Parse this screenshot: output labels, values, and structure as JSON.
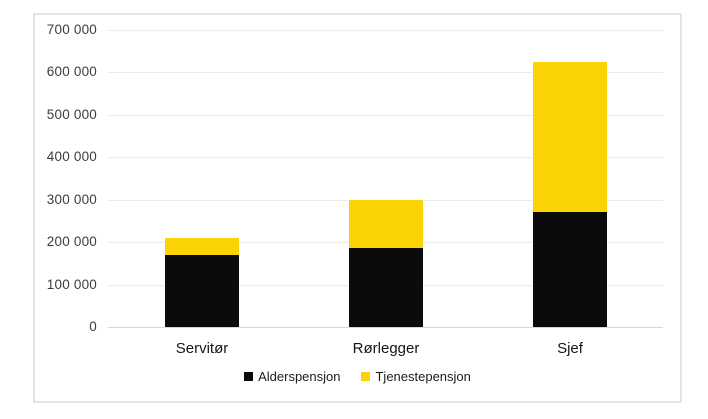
{
  "chart_data": {
    "type": "bar",
    "stacked": true,
    "title": "",
    "xlabel": "",
    "ylabel": "",
    "categories": [
      "Servitør",
      "Rørlegger",
      "Sjef"
    ],
    "series": [
      {
        "name": "Alderspensjon",
        "color": "#0b0b0b",
        "values": [
          170000,
          187000,
          270000
        ]
      },
      {
        "name": "Tjenestepensjon",
        "color": "#fcd405",
        "values": [
          40000,
          112000,
          355000
        ]
      }
    ],
    "totals": [
      210000,
      299000,
      625000
    ],
    "ylim": [
      0,
      700000
    ],
    "ytick_step": 100000,
    "ytick_labels": [
      "0",
      "100 000",
      "200 000",
      "300 000",
      "400 000",
      "500 000",
      "600 000",
      "700 000"
    ],
    "grid": true,
    "legend_position": "bottom"
  },
  "colors": {
    "background": "#ffffff",
    "frame_border": "#e4e4e4",
    "gridline": "#ececec",
    "baseline": "#d6d6d6",
    "tick_text": "#3d3d3d",
    "category_text": "#161616",
    "legend_text": "#1c1c1c",
    "series_black": "#0b0b0b",
    "series_yellow": "#fcd405"
  }
}
